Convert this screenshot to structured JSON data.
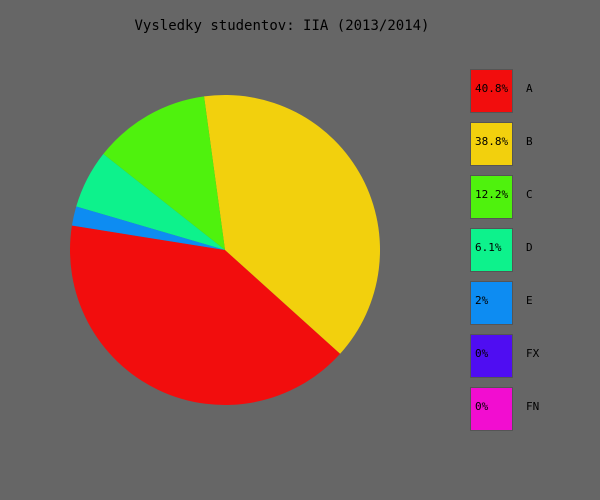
{
  "chart_data": {
    "type": "pie",
    "title": "Vysledky studentov: IIA (2013/2014)",
    "slices": [
      {
        "label": "A",
        "value": 40.8,
        "pct_label": "40.8%",
        "color": "#f20d0d"
      },
      {
        "label": "B",
        "value": 38.8,
        "pct_label": "38.8%",
        "color": "#f2d00d"
      },
      {
        "label": "C",
        "value": 12.2,
        "pct_label": "12.2%",
        "color": "#4ff20d"
      },
      {
        "label": "D",
        "value": 6.1,
        "pct_label": "6.1%",
        "color": "#0df28c"
      },
      {
        "label": "E",
        "value": 2,
        "pct_label": "2%",
        "color": "#0d8cf2"
      },
      {
        "label": "FX",
        "value": 0,
        "pct_label": "0%",
        "color": "#4f0df2"
      },
      {
        "label": "FN",
        "value": 0,
        "pct_label": "0%",
        "color": "#f20dd0"
      }
    ],
    "legend_position": "right"
  }
}
